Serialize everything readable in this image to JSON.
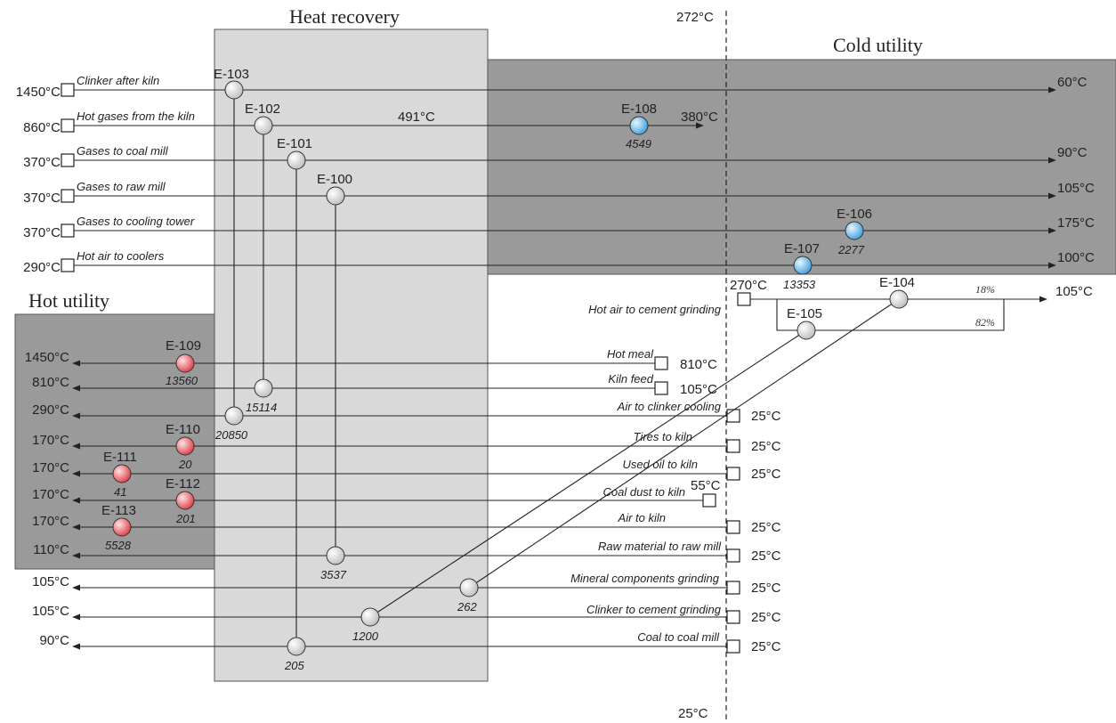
{
  "titles": {
    "heat_recovery": "Heat recovery",
    "cold_utility": "Cold utility",
    "hot_utility": "Hot utility"
  },
  "pinch": {
    "top": "272°C",
    "bottom": "25°C"
  },
  "colors": {
    "region_light": "#d9d9d9",
    "region_dark": "#9a9a9a",
    "hx_recovery": "#cfcfcf",
    "hx_cold": "#4aa6e0",
    "hx_hot": "#e24a52"
  },
  "hot_streams": [
    {
      "name": "Clinker after kiln",
      "t_in": "1450°C",
      "t_out": "60°C"
    },
    {
      "name": "Hot gases from the kiln",
      "t_in": "860°C",
      "t_out": "380°C",
      "t_mid": "491°C"
    },
    {
      "name": "Gases to coal mill",
      "t_in": "370°C",
      "t_out": "90°C"
    },
    {
      "name": "Gases to raw mill",
      "t_in": "370°C",
      "t_out": "105°C"
    },
    {
      "name": "Gases to cooling tower",
      "t_in": "370°C",
      "t_out": "175°C"
    },
    {
      "name": "Hot air to coolers",
      "t_in": "290°C",
      "t_out": "100°C"
    }
  ],
  "split_stream": {
    "name": "Hot air to cement grinding",
    "t_in": "270°C",
    "t_out": "105°C",
    "split_top": "18%",
    "split_bottom": "82%"
  },
  "cold_streams": [
    {
      "name": "Hot meal",
      "t_in": "810°C",
      "t_out": "1450°C"
    },
    {
      "name": "Kiln feed",
      "t_in": "105°C",
      "t_out": "810°C"
    },
    {
      "name": "Air to clinker cooling",
      "t_in": "25°C",
      "t_out": "290°C"
    },
    {
      "name": "Tires to kiln",
      "t_in": "25°C",
      "t_out": "170°C"
    },
    {
      "name": "Used oil to kiln",
      "t_in": "25°C",
      "t_out": "170°C"
    },
    {
      "name": "Coal dust to kiln",
      "t_in": "55°C",
      "t_out": "170°C"
    },
    {
      "name": "Air to kiln",
      "t_in": "25°C",
      "t_out": "170°C"
    },
    {
      "name": "Raw material to raw mill",
      "t_in": "25°C",
      "t_out": "110°C"
    },
    {
      "name": "Mineral components grinding",
      "t_in": "25°C",
      "t_out": "105°C"
    },
    {
      "name": "Clinker to cement grinding",
      "t_in": "25°C",
      "t_out": "105°C"
    },
    {
      "name": "Coal to coal mill",
      "t_in": "25°C",
      "t_out": "90°C"
    }
  ],
  "exchangers": [
    {
      "id": "E-103",
      "duty": "20850"
    },
    {
      "id": "E-102",
      "duty": "15114"
    },
    {
      "id": "E-101",
      "duty": "205"
    },
    {
      "id": "E-100",
      "duty": "3537"
    },
    {
      "id": "E-104",
      "duty": "1200"
    },
    {
      "id": "E-105",
      "duty": "262"
    },
    {
      "id": "E-106",
      "duty": "2277"
    },
    {
      "id": "E-107",
      "duty": "13353"
    },
    {
      "id": "E-108",
      "duty": "4549"
    },
    {
      "id": "E-109",
      "duty": "13560"
    },
    {
      "id": "E-110",
      "duty": "20"
    },
    {
      "id": "E-111",
      "duty": "41"
    },
    {
      "id": "E-112",
      "duty": "201"
    },
    {
      "id": "E-113",
      "duty": "5528"
    }
  ]
}
